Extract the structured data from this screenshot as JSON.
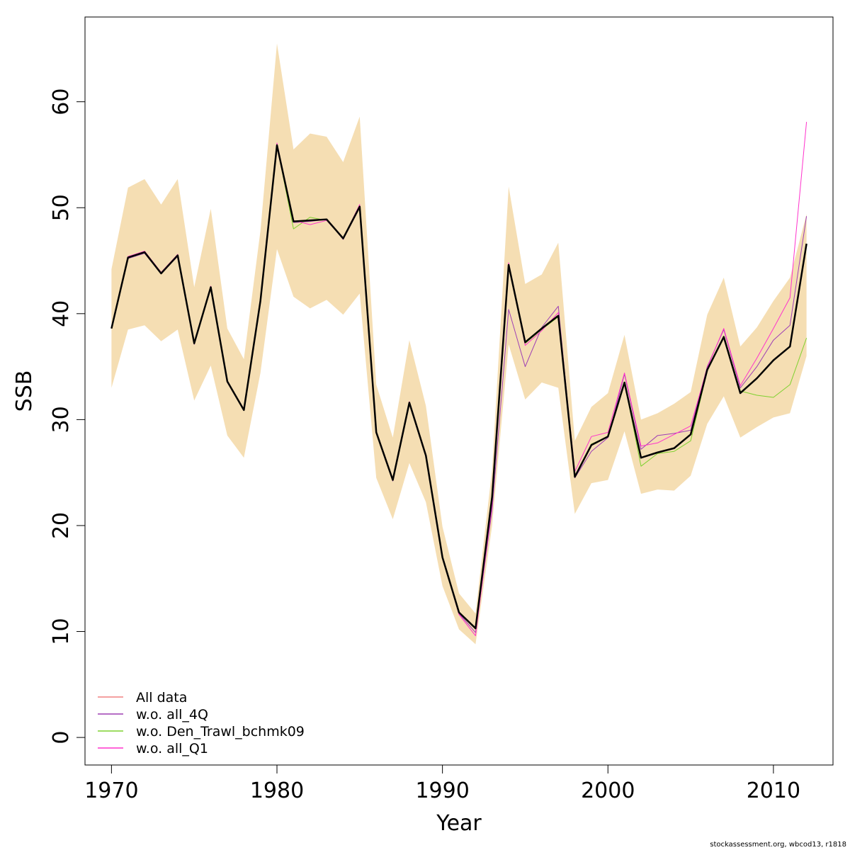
{
  "chart_data": {
    "type": "line",
    "title": "",
    "xlabel": "Year",
    "ylabel": "SSB",
    "xlim": [
      1968.4,
      2013.6
    ],
    "ylim": [
      -2.6,
      68.0
    ],
    "x_ticks": [
      1970,
      1980,
      1990,
      2000,
      2010
    ],
    "y_ticks": [
      0,
      10,
      20,
      30,
      40,
      50,
      60
    ],
    "grid": false,
    "legend_position": "bottom-left",
    "x": [
      1970,
      1971,
      1972,
      1973,
      1974,
      1975,
      1976,
      1977,
      1978,
      1979,
      1980,
      1981,
      1982,
      1983,
      1984,
      1985,
      1986,
      1987,
      1988,
      1989,
      1990,
      1991,
      1992,
      1993,
      1994,
      1995,
      1996,
      1997,
      1998,
      1999,
      2000,
      2001,
      2002,
      2003,
      2004,
      2005,
      2006,
      2007,
      2008,
      2009,
      2010,
      2011,
      2012
    ],
    "band": {
      "color": "#f5deb3",
      "lower": [
        33.0,
        38.5,
        38.9,
        37.4,
        38.5,
        31.8,
        35.1,
        28.5,
        26.4,
        34.4,
        46.1,
        41.6,
        40.5,
        41.3,
        39.9,
        41.9,
        24.5,
        20.6,
        25.9,
        22.2,
        14.3,
        10.2,
        8.8,
        20.0,
        37.1,
        31.9,
        33.5,
        33.0,
        21.1,
        24.0,
        24.3,
        28.9,
        23.0,
        23.4,
        23.3,
        24.7,
        29.6,
        32.2,
        28.3,
        29.3,
        30.2,
        30.6,
        36.0
      ],
      "upper": [
        44.2,
        51.9,
        52.7,
        50.3,
        52.7,
        42.5,
        49.9,
        38.6,
        35.7,
        47.8,
        65.5,
        55.5,
        57.0,
        56.7,
        54.3,
        58.6,
        33.3,
        28.3,
        37.5,
        31.3,
        19.9,
        13.6,
        11.7,
        25.3,
        52.0,
        42.8,
        43.7,
        46.7,
        28.0,
        31.2,
        32.5,
        38.0,
        30.0,
        30.6,
        31.5,
        32.6,
        39.9,
        43.4,
        36.9,
        38.7,
        41.2,
        43.4,
        49.4
      ]
    },
    "series": [
      {
        "name": "All data",
        "color": "#000000",
        "width": 2.5,
        "in_legend": false,
        "values": [
          38.6,
          45.3,
          45.8,
          43.8,
          45.5,
          37.2,
          42.5,
          33.6,
          30.9,
          41.2,
          55.9,
          48.7,
          48.8,
          48.9,
          47.1,
          50.1,
          28.8,
          24.3,
          31.6,
          26.6,
          17.0,
          11.8,
          10.3,
          22.7,
          44.6,
          37.3,
          38.6,
          39.8,
          24.6,
          27.6,
          28.4,
          33.5,
          26.4,
          26.9,
          27.3,
          28.6,
          34.7,
          37.8,
          32.5,
          33.9,
          35.6,
          36.9,
          46.6
        ]
      },
      {
        "name": "All data",
        "color": "#f08080",
        "width": 1,
        "in_legend": true,
        "values": [
          38.6,
          45.3,
          45.8,
          43.8,
          45.5,
          37.2,
          42.5,
          33.6,
          30.9,
          41.2,
          55.9,
          48.7,
          48.8,
          48.9,
          47.1,
          50.1,
          28.8,
          24.3,
          31.6,
          26.6,
          17.0,
          11.8,
          10.3,
          22.7,
          44.6,
          37.3,
          38.6,
          39.8,
          24.6,
          27.6,
          28.4,
          33.5,
          26.4,
          26.9,
          27.3,
          28.6,
          34.7,
          37.8,
          32.5,
          33.9,
          35.6,
          36.9,
          46.6
        ]
      },
      {
        "name": "w.o. all_4Q",
        "color": "#9e3fb4",
        "width": 1,
        "in_legend": true,
        "values": [
          38.6,
          45.2,
          45.7,
          43.8,
          45.4,
          37.1,
          42.4,
          33.5,
          30.9,
          41.1,
          55.7,
          48.6,
          48.7,
          48.9,
          47.0,
          50.0,
          28.7,
          24.2,
          31.5,
          26.5,
          17.0,
          11.7,
          9.9,
          21.5,
          40.4,
          35.0,
          38.7,
          40.7,
          24.5,
          27.0,
          28.3,
          34.3,
          27.2,
          28.5,
          28.7,
          29.0,
          35.0,
          38.5,
          33.0,
          35.0,
          37.5,
          38.9,
          49.2
        ]
      },
      {
        "name": "w.o. Den_Trawl_bchmk09",
        "color": "#7fd130",
        "width": 1,
        "in_legend": true,
        "values": [
          38.6,
          45.3,
          45.8,
          43.9,
          45.6,
          37.2,
          42.5,
          33.6,
          30.9,
          41.2,
          55.9,
          48.0,
          49.1,
          48.8,
          47.1,
          50.1,
          28.8,
          24.3,
          31.6,
          26.6,
          17.0,
          11.8,
          10.3,
          22.7,
          44.6,
          37.2,
          38.5,
          39.7,
          24.6,
          27.7,
          28.4,
          33.5,
          25.6,
          26.8,
          27.0,
          28.0,
          34.6,
          37.9,
          32.7,
          32.3,
          32.1,
          33.3,
          37.7
        ]
      },
      {
        "name": "w.o. all_Q1",
        "color": "#ff33cc",
        "width": 1,
        "in_legend": true,
        "values": [
          38.7,
          45.4,
          45.9,
          43.9,
          45.6,
          37.3,
          42.6,
          33.6,
          31.0,
          41.3,
          56.1,
          48.8,
          48.4,
          48.8,
          47.1,
          50.3,
          28.9,
          24.4,
          31.7,
          26.7,
          17.0,
          11.6,
          9.6,
          22.0,
          44.8,
          37.0,
          38.4,
          40.1,
          25.1,
          28.4,
          28.8,
          34.4,
          27.5,
          27.8,
          28.6,
          29.4,
          34.9,
          38.6,
          33.2,
          35.8,
          38.6,
          41.5,
          58.1
        ]
      }
    ]
  },
  "credit": "stockassessment.org, wbcod13, r1818"
}
